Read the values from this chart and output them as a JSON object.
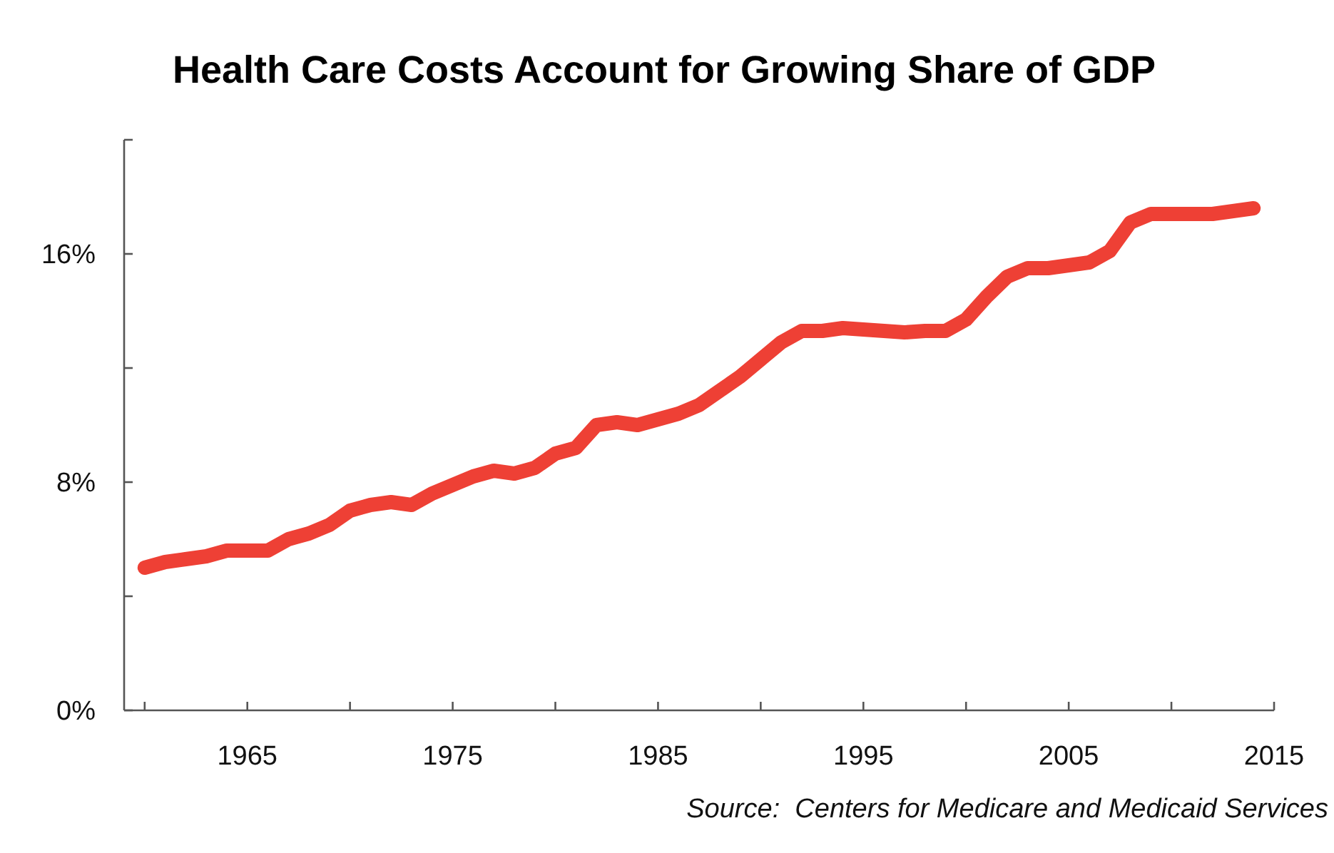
{
  "chart_data": {
    "type": "line",
    "title": "Health Care Costs Account for Growing Share of GDP",
    "annotations": [
      "Source:  Centers for Medicare and Medicaid Services"
    ],
    "x": [
      1960,
      1961,
      1962,
      1963,
      1964,
      1965,
      1966,
      1967,
      1968,
      1969,
      1970,
      1971,
      1972,
      1973,
      1974,
      1975,
      1976,
      1977,
      1978,
      1979,
      1980,
      1981,
      1982,
      1983,
      1984,
      1985,
      1986,
      1987,
      1988,
      1989,
      1990,
      1991,
      1992,
      1993,
      1994,
      1995,
      1996,
      1997,
      1998,
      1999,
      2000,
      2001,
      2002,
      2003,
      2004,
      2005,
      2006,
      2007,
      2008,
      2009,
      2010,
      2011,
      2012,
      2013,
      2014
    ],
    "series": [
      {
        "color": "#ee4035",
        "values": [
          5.0,
          5.2,
          5.3,
          5.4,
          5.6,
          5.6,
          5.6,
          6.0,
          6.2,
          6.5,
          7.0,
          7.2,
          7.3,
          7.2,
          7.6,
          7.9,
          8.2,
          8.4,
          8.3,
          8.5,
          9.0,
          9.2,
          10.0,
          10.1,
          10.0,
          10.2,
          10.4,
          10.7,
          11.2,
          11.7,
          12.3,
          12.9,
          13.3,
          13.3,
          13.4,
          13.35,
          13.3,
          13.25,
          13.3,
          13.3,
          13.7,
          14.5,
          15.2,
          15.5,
          15.5,
          15.6,
          15.7,
          16.1,
          17.1,
          17.4,
          17.4,
          17.4,
          17.4,
          17.5,
          17.6
        ]
      }
    ],
    "xlim": [
      1959,
      2015
    ],
    "xticks": [
      {
        "value": 1960,
        "label": null
      },
      1965,
      {
        "value": 1970,
        "label": null
      },
      1975,
      {
        "value": 1980,
        "label": null
      },
      1985,
      {
        "value": 1990,
        "label": null
      },
      1995,
      {
        "value": 2000,
        "label": null
      },
      2005,
      {
        "value": 2010,
        "label": null
      },
      2015
    ],
    "ylim": [
      0,
      20
    ],
    "yticks": [
      {
        "value": 0,
        "label": "0%"
      },
      {
        "value": 4,
        "label": null
      },
      {
        "value": 8,
        "label": "8%"
      },
      {
        "value": 12,
        "label": null
      },
      {
        "value": 16,
        "label": "16%"
      },
      {
        "value": 20,
        "label": null
      }
    ],
    "grid": false,
    "marker": "none",
    "line_style": "solid"
  }
}
